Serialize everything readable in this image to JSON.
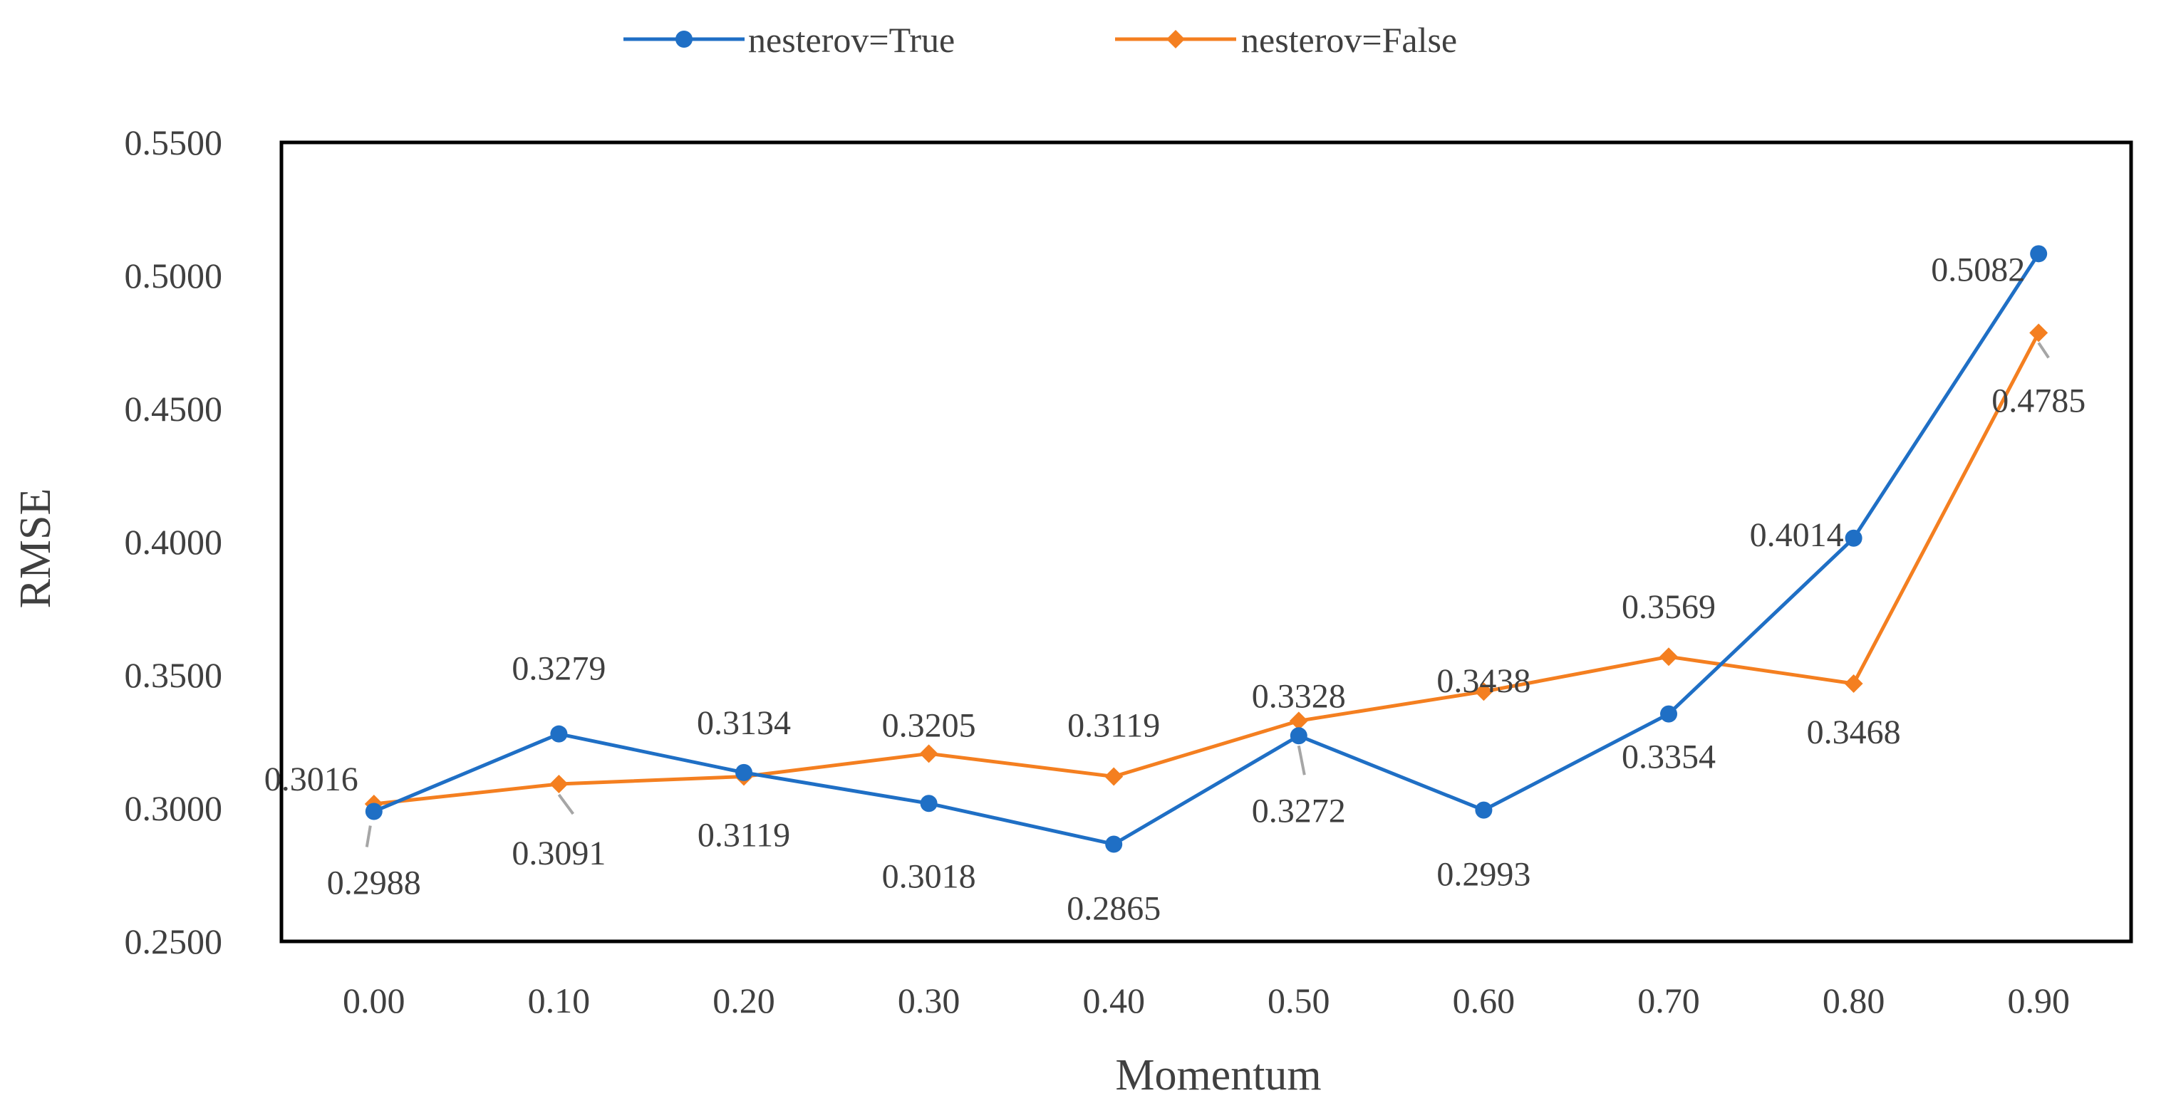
{
  "chart_data": {
    "type": "line",
    "title": "",
    "xlabel": "Momentum",
    "ylabel": "RMSE",
    "categories": [
      "0.00",
      "0.10",
      "0.20",
      "0.30",
      "0.40",
      "0.50",
      "0.60",
      "0.70",
      "0.80",
      "0.90"
    ],
    "ylim": [
      0.25,
      0.55
    ],
    "yticks": [
      "0.2500",
      "0.3000",
      "0.3500",
      "0.4000",
      "0.4500",
      "0.5000",
      "0.5500"
    ],
    "grid": false,
    "legend_position": "top-center",
    "series": [
      {
        "name": "nesterov=True",
        "color": "#1F6FC5",
        "marker": "circle",
        "values": [
          0.2988,
          0.3279,
          0.3134,
          0.3018,
          0.2865,
          0.3272,
          0.2993,
          0.3354,
          0.4014,
          0.5082
        ],
        "labels": [
          "0.2988",
          "0.3279",
          "0.3134",
          "0.3018",
          "0.2865",
          "0.3272",
          "0.2993",
          "0.3354",
          "0.4014",
          "0.5082"
        ]
      },
      {
        "name": "nesterov=False",
        "color": "#F47F20",
        "marker": "diamond",
        "values": [
          0.3016,
          0.3091,
          0.3119,
          0.3205,
          0.3119,
          0.3328,
          0.3438,
          0.3569,
          0.3468,
          0.4785
        ],
        "labels": [
          "0.3016",
          "0.3091",
          "0.3119",
          "0.3205",
          "0.3119",
          "0.3328",
          "0.3438",
          "0.3569",
          "0.3468",
          "0.4785"
        ]
      }
    ]
  }
}
